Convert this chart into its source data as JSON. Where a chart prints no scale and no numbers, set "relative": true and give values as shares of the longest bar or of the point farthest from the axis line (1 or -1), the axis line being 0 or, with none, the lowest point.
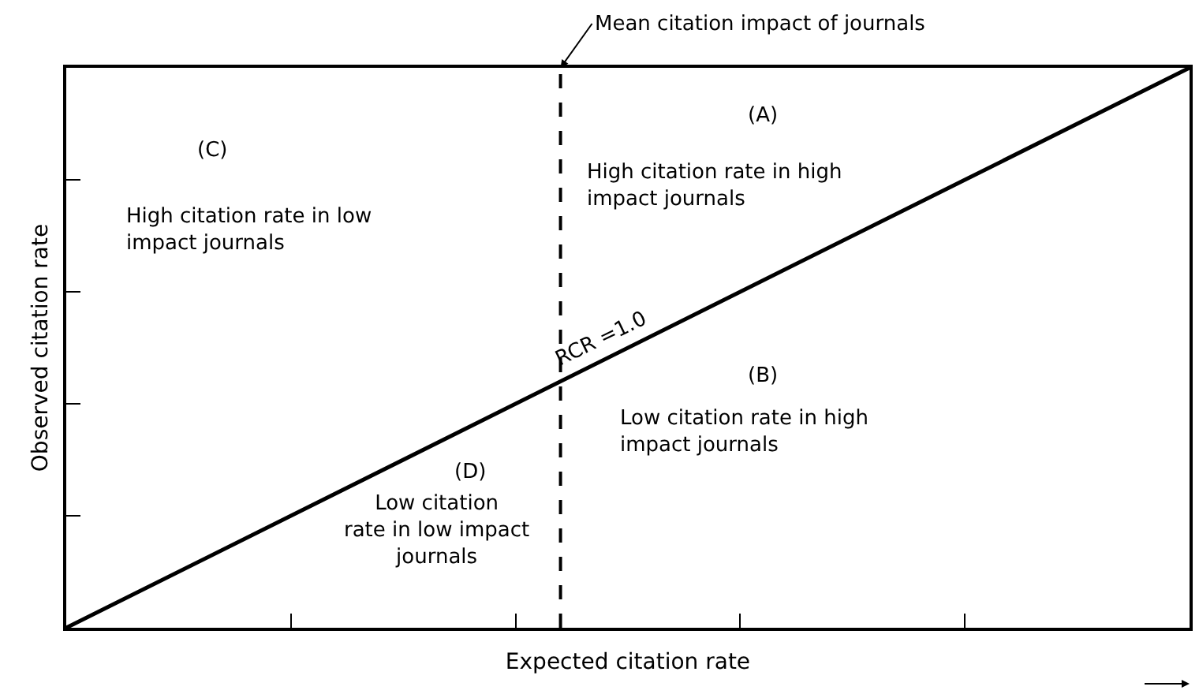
{
  "chart_data": {
    "type": "line",
    "relative": true,
    "categories": [
      null,
      null,
      null,
      null,
      null,
      null
    ],
    "tick_labels": false,
    "xlabel": "Expected citation rate",
    "ylabel": "Observed citation rate",
    "series": [
      {
        "name": "RCR =1.0",
        "color": "#000000",
        "values": [
          0,
          0.2,
          0.4,
          0.6,
          0.8,
          1
        ]
      }
    ],
    "annotations": [
      "Mean citation impact of journals",
      "(A)",
      "High citation rate in high\nimpact journals",
      "(B)",
      "Low citation rate in high\nimpact journals",
      "(C)",
      "High citation rate in low\nimpact journals",
      "(D)",
      "Low citation\nrate in low impact\njournals"
    ],
    "legend": false,
    "marker": "none",
    "line_style": "solid"
  }
}
